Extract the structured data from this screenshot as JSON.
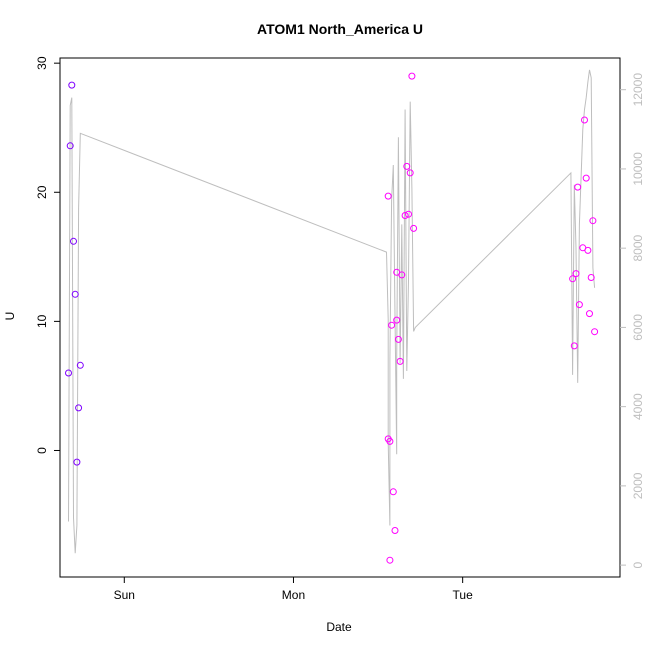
{
  "chart_data": {
    "type": "scatter",
    "title": "ATOM1 North_America U",
    "xlabel": "Date",
    "ylabel": "U",
    "x_unit": "day",
    "xlim": [
      -0.38,
      2.93
    ],
    "ylim": [
      -9.8,
      30.4
    ],
    "y2lim": [
      -300,
      12800
    ],
    "x_ticks": [
      {
        "value": 0,
        "label": "Sun"
      },
      {
        "value": 1,
        "label": "Mon"
      },
      {
        "value": 2,
        "label": "Tue"
      }
    ],
    "y_ticks": [
      0,
      10,
      20,
      30
    ],
    "y2_ticks": [
      0,
      2000,
      4000,
      6000,
      8000,
      10000,
      12000
    ],
    "grid": false,
    "colors": {
      "early_points": "#7f00ff",
      "late_points": "#ff00ff",
      "line": "#bebebe",
      "right_axis": "#bebebe",
      "axes": "#000000"
    },
    "series": [
      {
        "role": "points-early",
        "marker": "open-circle",
        "color": "#7f00ff",
        "points": [
          [
            -0.33,
            6.0
          ],
          [
            -0.32,
            23.6
          ],
          [
            -0.31,
            28.3
          ],
          [
            -0.3,
            16.2
          ],
          [
            -0.29,
            12.1
          ],
          [
            -0.28,
            -0.9
          ],
          [
            -0.27,
            3.3
          ],
          [
            -0.26,
            6.6
          ]
        ]
      },
      {
        "role": "points-late",
        "marker": "open-circle",
        "color": "#ff00ff",
        "points": [
          [
            1.56,
            19.7
          ],
          [
            1.56,
            0.9
          ],
          [
            1.57,
            -8.5
          ],
          [
            1.57,
            0.7
          ],
          [
            1.58,
            9.7
          ],
          [
            1.59,
            -3.2
          ],
          [
            1.6,
            -6.2
          ],
          [
            1.61,
            10.1
          ],
          [
            1.61,
            13.8
          ],
          [
            1.62,
            8.6
          ],
          [
            1.63,
            6.9
          ],
          [
            1.64,
            13.6
          ],
          [
            1.66,
            18.2
          ],
          [
            1.67,
            22.0
          ],
          [
            1.68,
            18.3
          ],
          [
            1.69,
            21.5
          ],
          [
            1.7,
            29.0
          ],
          [
            1.71,
            17.2
          ],
          [
            2.65,
            13.3
          ],
          [
            2.66,
            8.1
          ],
          [
            2.67,
            13.7
          ],
          [
            2.68,
            20.4
          ],
          [
            2.69,
            11.3
          ],
          [
            2.71,
            15.7
          ],
          [
            2.72,
            25.6
          ],
          [
            2.73,
            21.1
          ],
          [
            2.74,
            15.5
          ],
          [
            2.75,
            10.6
          ],
          [
            2.76,
            13.4
          ],
          [
            2.77,
            17.8
          ],
          [
            2.78,
            9.2
          ]
        ]
      },
      {
        "role": "line-right-axis",
        "axis": "right",
        "color": "#bebebe",
        "points": [
          [
            -0.33,
            1100
          ],
          [
            -0.32,
            11600
          ],
          [
            -0.31,
            11800
          ],
          [
            -0.3,
            1200
          ],
          [
            -0.29,
            300
          ],
          [
            -0.28,
            1000
          ],
          [
            -0.27,
            9000
          ],
          [
            -0.26,
            10900
          ],
          [
            1.55,
            7900
          ],
          [
            1.56,
            6200
          ],
          [
            1.56,
            3100
          ],
          [
            1.57,
            1000
          ],
          [
            1.57,
            5200
          ],
          [
            1.58,
            9200
          ],
          [
            1.59,
            10100
          ],
          [
            1.6,
            6300
          ],
          [
            1.61,
            2800
          ],
          [
            1.61,
            5200
          ],
          [
            1.62,
            10800
          ],
          [
            1.63,
            5100
          ],
          [
            1.64,
            8600
          ],
          [
            1.65,
            4700
          ],
          [
            1.66,
            11500
          ],
          [
            1.67,
            4900
          ],
          [
            1.68,
            7200
          ],
          [
            1.69,
            11700
          ],
          [
            1.7,
            9500
          ],
          [
            1.71,
            5900
          ],
          [
            1.72,
            6000
          ],
          [
            2.64,
            9900
          ],
          [
            2.65,
            4800
          ],
          [
            2.66,
            9600
          ],
          [
            2.67,
            8000
          ],
          [
            2.68,
            4600
          ],
          [
            2.69,
            8600
          ],
          [
            2.71,
            11000
          ],
          [
            2.72,
            11500
          ],
          [
            2.73,
            11800
          ],
          [
            2.74,
            12200
          ],
          [
            2.75,
            12500
          ],
          [
            2.76,
            12300
          ],
          [
            2.77,
            7500
          ],
          [
            2.78,
            7000
          ]
        ]
      }
    ]
  }
}
